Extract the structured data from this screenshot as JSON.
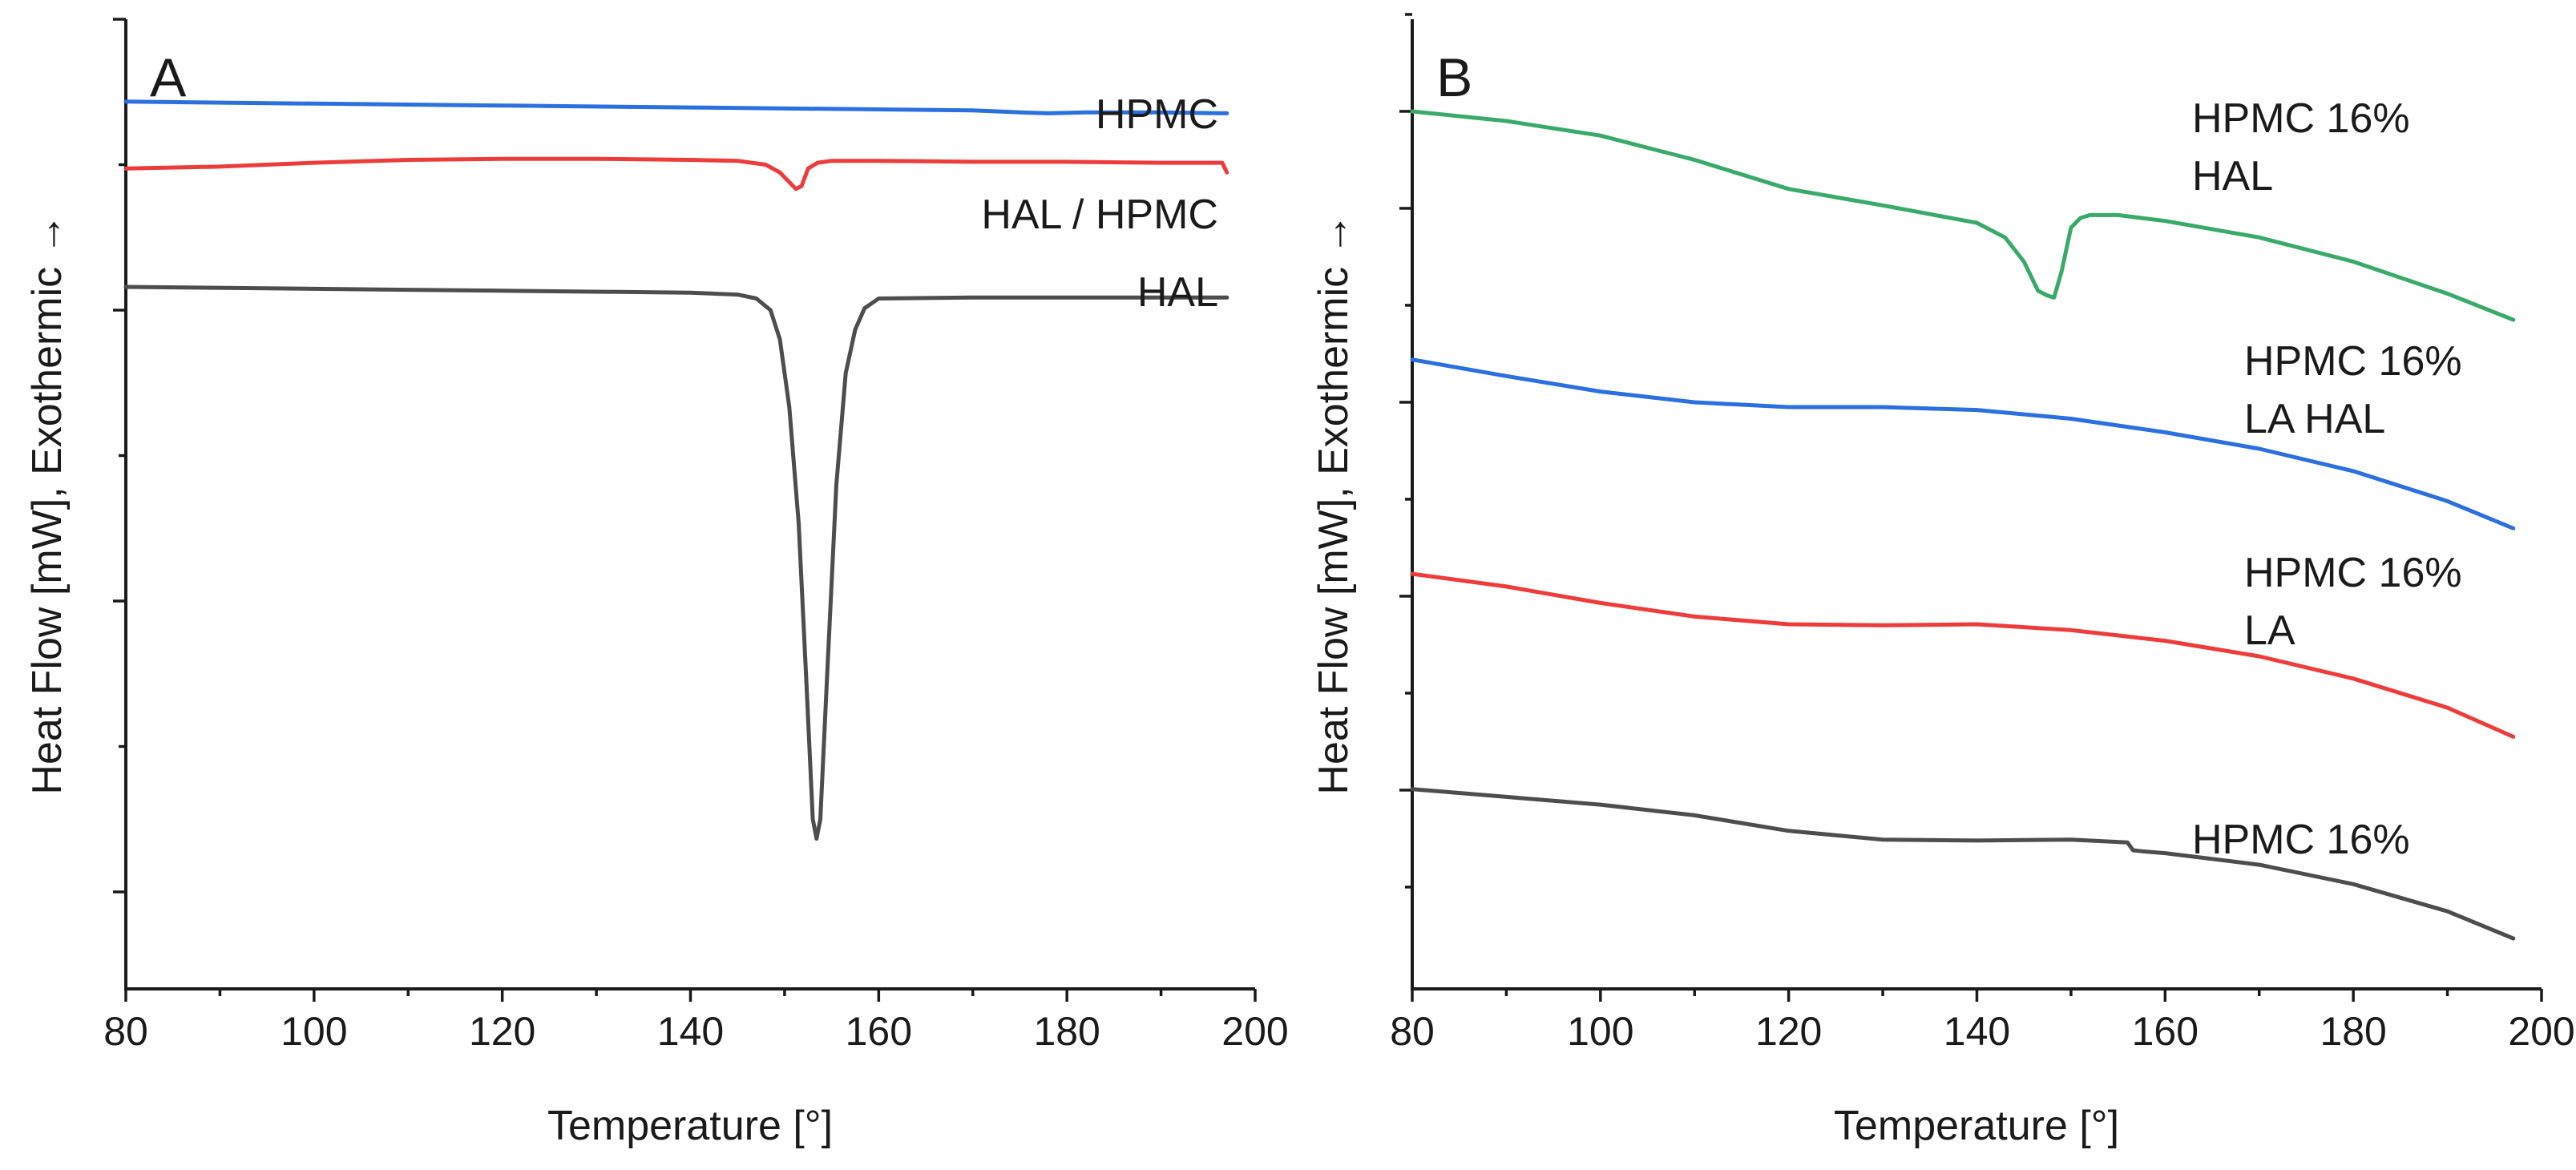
{
  "figure": {
    "panels": [
      {
        "id": "A",
        "panel_label": "A",
        "xlabel": "Temperature [°]",
        "ylabel": "Heat Flow [mW], Exothermic →"
      },
      {
        "id": "B",
        "panel_label": "B",
        "xlabel": "Temperature [°]",
        "ylabel": "Heat Flow [mW], Exothermic →"
      }
    ]
  },
  "chart_data": [
    {
      "type": "line",
      "panel": "A",
      "title": "",
      "xlabel": "Temperature [°]",
      "ylabel": "Heat Flow [mW], Exothermic →",
      "xlim": [
        80,
        200
      ],
      "ylim": [
        0,
        100
      ],
      "xticks": [
        80,
        100,
        120,
        140,
        160,
        180,
        200
      ],
      "yticks_major": [
        10,
        40,
        70,
        100
      ],
      "yticks_minor": [
        25,
        55,
        85
      ],
      "y_tick_labels_shown": false,
      "legend": "labels placed beside each curve",
      "series": [
        {
          "name": "HPMC",
          "label_lines": [
            "HPMC"
          ],
          "color": "#2b6fe0",
          "x": [
            80,
            100,
            120,
            140,
            160,
            170,
            175,
            178,
            182,
            190,
            197
          ],
          "y": [
            91.5,
            91.3,
            91.1,
            90.9,
            90.7,
            90.6,
            90.4,
            90.3,
            90.4,
            90.4,
            90.3
          ]
        },
        {
          "name": "HAL / HPMC",
          "label_lines": [
            "HAL / HPMC"
          ],
          "color": "#ee3b3b",
          "x": [
            80,
            90,
            100,
            110,
            120,
            130,
            140,
            145,
            148,
            149.5,
            150.5,
            151.2,
            151.8,
            152.5,
            153.5,
            155,
            160,
            170,
            180,
            190,
            196.5,
            197
          ],
          "y": [
            84.6,
            84.8,
            85.2,
            85.5,
            85.6,
            85.6,
            85.5,
            85.4,
            85.0,
            84.2,
            83.2,
            82.5,
            82.8,
            84.6,
            85.2,
            85.4,
            85.4,
            85.3,
            85.3,
            85.2,
            85.2,
            84.2
          ]
        },
        {
          "name": "HAL",
          "label_lines": [
            "HAL"
          ],
          "color": "#4d4d4d",
          "x": [
            80,
            100,
            120,
            140,
            145,
            147,
            148.5,
            149.5,
            150.5,
            151.5,
            152.3,
            153,
            153.4,
            153.8,
            154.5,
            155.5,
            156.5,
            157.5,
            158.5,
            160,
            170,
            180,
            190,
            197
          ],
          "y": [
            72.4,
            72.2,
            72.0,
            71.8,
            71.6,
            71.2,
            70.0,
            67.0,
            60.0,
            48.0,
            32.0,
            17.5,
            15.5,
            17.5,
            32.0,
            52.0,
            63.5,
            68.0,
            70.2,
            71.2,
            71.3,
            71.3,
            71.3,
            71.3
          ]
        }
      ]
    },
    {
      "type": "line",
      "panel": "B",
      "title": "",
      "xlabel": "Temperature [°]",
      "ylabel": "Heat Flow [mW], Exothermic →",
      "xlim": [
        80,
        200
      ],
      "ylim": [
        0,
        100
      ],
      "xticks": [
        80,
        100,
        120,
        140,
        160,
        180,
        200
      ],
      "yticks_major": [
        20.5,
        40.5,
        60.5,
        80.5,
        90.5
      ],
      "yticks_minor": [
        10.5,
        30.5,
        50.5,
        70.5,
        100.5
      ],
      "y_tick_labels_shown": false,
      "legend": "labels placed beside each curve",
      "series": [
        {
          "name": "HPMC 16% HAL",
          "label_lines": [
            "HPMC 16%",
            "HAL"
          ],
          "color": "#3aaa6a",
          "x": [
            80,
            90,
            100,
            110,
            120,
            130,
            140,
            143,
            145,
            146.5,
            147.5,
            148.2,
            149,
            150,
            151,
            152,
            155,
            160,
            170,
            180,
            190,
            197
          ],
          "y": [
            90.5,
            89.5,
            88.0,
            85.5,
            82.5,
            80.8,
            79.0,
            77.5,
            75.0,
            72.0,
            71.5,
            71.3,
            74.0,
            78.5,
            79.5,
            79.8,
            79.8,
            79.2,
            77.5,
            75.0,
            71.7,
            69.0
          ]
        },
        {
          "name": "HPMC 16% LA HAL",
          "label_lines": [
            "HPMC 16%",
            "LA HAL"
          ],
          "color": "#2b6fe0",
          "x": [
            80,
            90,
            100,
            110,
            120,
            130,
            140,
            150,
            160,
            170,
            180,
            190,
            197
          ],
          "y": [
            64.9,
            63.2,
            61.6,
            60.5,
            60.0,
            60.0,
            59.7,
            58.8,
            57.4,
            55.7,
            53.4,
            50.3,
            47.5
          ]
        },
        {
          "name": "HPMC 16% LA",
          "label_lines": [
            "HPMC 16%",
            "LA"
          ],
          "color": "#ee3b3b",
          "x": [
            80,
            90,
            100,
            110,
            120,
            130,
            140,
            150,
            160,
            170,
            180,
            190,
            197
          ],
          "y": [
            42.8,
            41.5,
            39.8,
            38.4,
            37.6,
            37.5,
            37.6,
            37.0,
            35.9,
            34.3,
            32.0,
            29.0,
            26.0
          ]
        },
        {
          "name": "HPMC 16%",
          "label_lines": [
            "HPMC 16%"
          ],
          "color": "#4d4d4d",
          "x": [
            80,
            90,
            100,
            110,
            120,
            130,
            140,
            150,
            156,
            156.6,
            157.5,
            160,
            170,
            180,
            190,
            197
          ],
          "y": [
            20.6,
            19.8,
            19.0,
            17.9,
            16.3,
            15.4,
            15.3,
            15.4,
            15.1,
            14.3,
            14.2,
            14.0,
            12.8,
            10.8,
            8.0,
            5.2
          ]
        }
      ]
    }
  ]
}
